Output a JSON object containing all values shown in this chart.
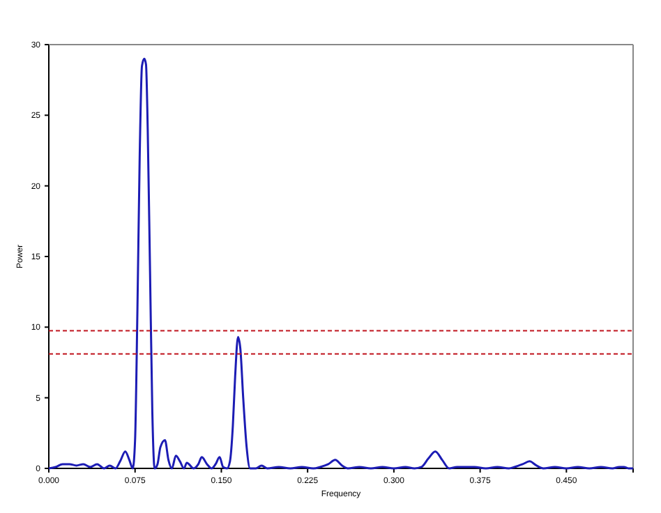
{
  "chart_data": {
    "type": "line",
    "xlabel": "Frequency",
    "ylabel": "Power",
    "xlim": [
      0,
      0.508
    ],
    "ylim": [
      0,
      30
    ],
    "xticks": [
      {
        "value": 0,
        "label": "0.000"
      },
      {
        "value": 0.075,
        "label": "0.075"
      },
      {
        "value": 0.15,
        "label": "0.150"
      },
      {
        "value": 0.225,
        "label": "0.225"
      },
      {
        "value": 0.3,
        "label": "0.300"
      },
      {
        "value": 0.375,
        "label": "0.375"
      },
      {
        "value": 0.45,
        "label": "0.450"
      }
    ],
    "yticks": [
      0,
      5,
      10,
      15,
      20,
      25,
      30
    ],
    "grid": false,
    "marker": "none",
    "line_style": "solid",
    "series": [
      {
        "color": "#1c1cb4",
        "x": [
          0,
          0.006,
          0.012,
          0.018,
          0.024,
          0.03,
          0.036,
          0.042,
          0.048,
          0.053,
          0.058,
          0.062,
          0.0665,
          0.07,
          0.073,
          0.075,
          0.077,
          0.079,
          0.081,
          0.083,
          0.0845,
          0.086,
          0.088,
          0.09,
          0.092,
          0.0945,
          0.097,
          0.101,
          0.104,
          0.107,
          0.1105,
          0.114,
          0.1175,
          0.12,
          0.126,
          0.13,
          0.133,
          0.1375,
          0.1415,
          0.145,
          0.1485,
          0.1515,
          0.155,
          0.1575,
          0.16,
          0.162,
          0.1645,
          0.1665,
          0.169,
          0.172,
          0.175,
          0.18,
          0.185,
          0.19,
          0.2,
          0.21,
          0.22,
          0.23,
          0.236,
          0.243,
          0.249,
          0.255,
          0.26,
          0.27,
          0.28,
          0.29,
          0.3,
          0.31,
          0.318,
          0.324,
          0.33,
          0.336,
          0.342,
          0.348,
          0.355,
          0.362,
          0.37,
          0.38,
          0.39,
          0.4,
          0.405,
          0.412,
          0.418,
          0.424,
          0.43,
          0.44,
          0.45,
          0.46,
          0.47,
          0.48,
          0.49,
          0.496,
          0.5,
          0.504,
          0.508
        ],
        "values": [
          0,
          0.1,
          0.3,
          0.3,
          0.2,
          0.3,
          0.1,
          0.3,
          0,
          0.2,
          0,
          0.5,
          1.2,
          0.6,
          0,
          2,
          11,
          22,
          28.5,
          29,
          28.6,
          24,
          14,
          4,
          0,
          0.3,
          1.5,
          2,
          0.6,
          0,
          0.9,
          0.5,
          0,
          0.4,
          0,
          0.3,
          0.8,
          0.3,
          0,
          0.3,
          0.8,
          0.1,
          0,
          0.5,
          3,
          6.5,
          9.3,
          8.5,
          5,
          1.5,
          0,
          0,
          0.2,
          0,
          0.1,
          0,
          0.1,
          0,
          0.1,
          0.3,
          0.6,
          0.2,
          0,
          0.1,
          0,
          0.1,
          0,
          0.1,
          0,
          0.1,
          0.7,
          1.2,
          0.6,
          0,
          0.1,
          0.1,
          0.1,
          0,
          0.1,
          0,
          0.1,
          0.3,
          0.5,
          0.2,
          0,
          0.1,
          0,
          0.1,
          0,
          0.1,
          0,
          0.1,
          0.1,
          0,
          0
        ]
      }
    ],
    "ref_lines": [
      {
        "axis": "y",
        "value": 9.75,
        "color": "#c0141e",
        "line_style": "dashed"
      },
      {
        "axis": "y",
        "value": 8.1,
        "color": "#c0141e",
        "line_style": "dashed"
      }
    ]
  }
}
